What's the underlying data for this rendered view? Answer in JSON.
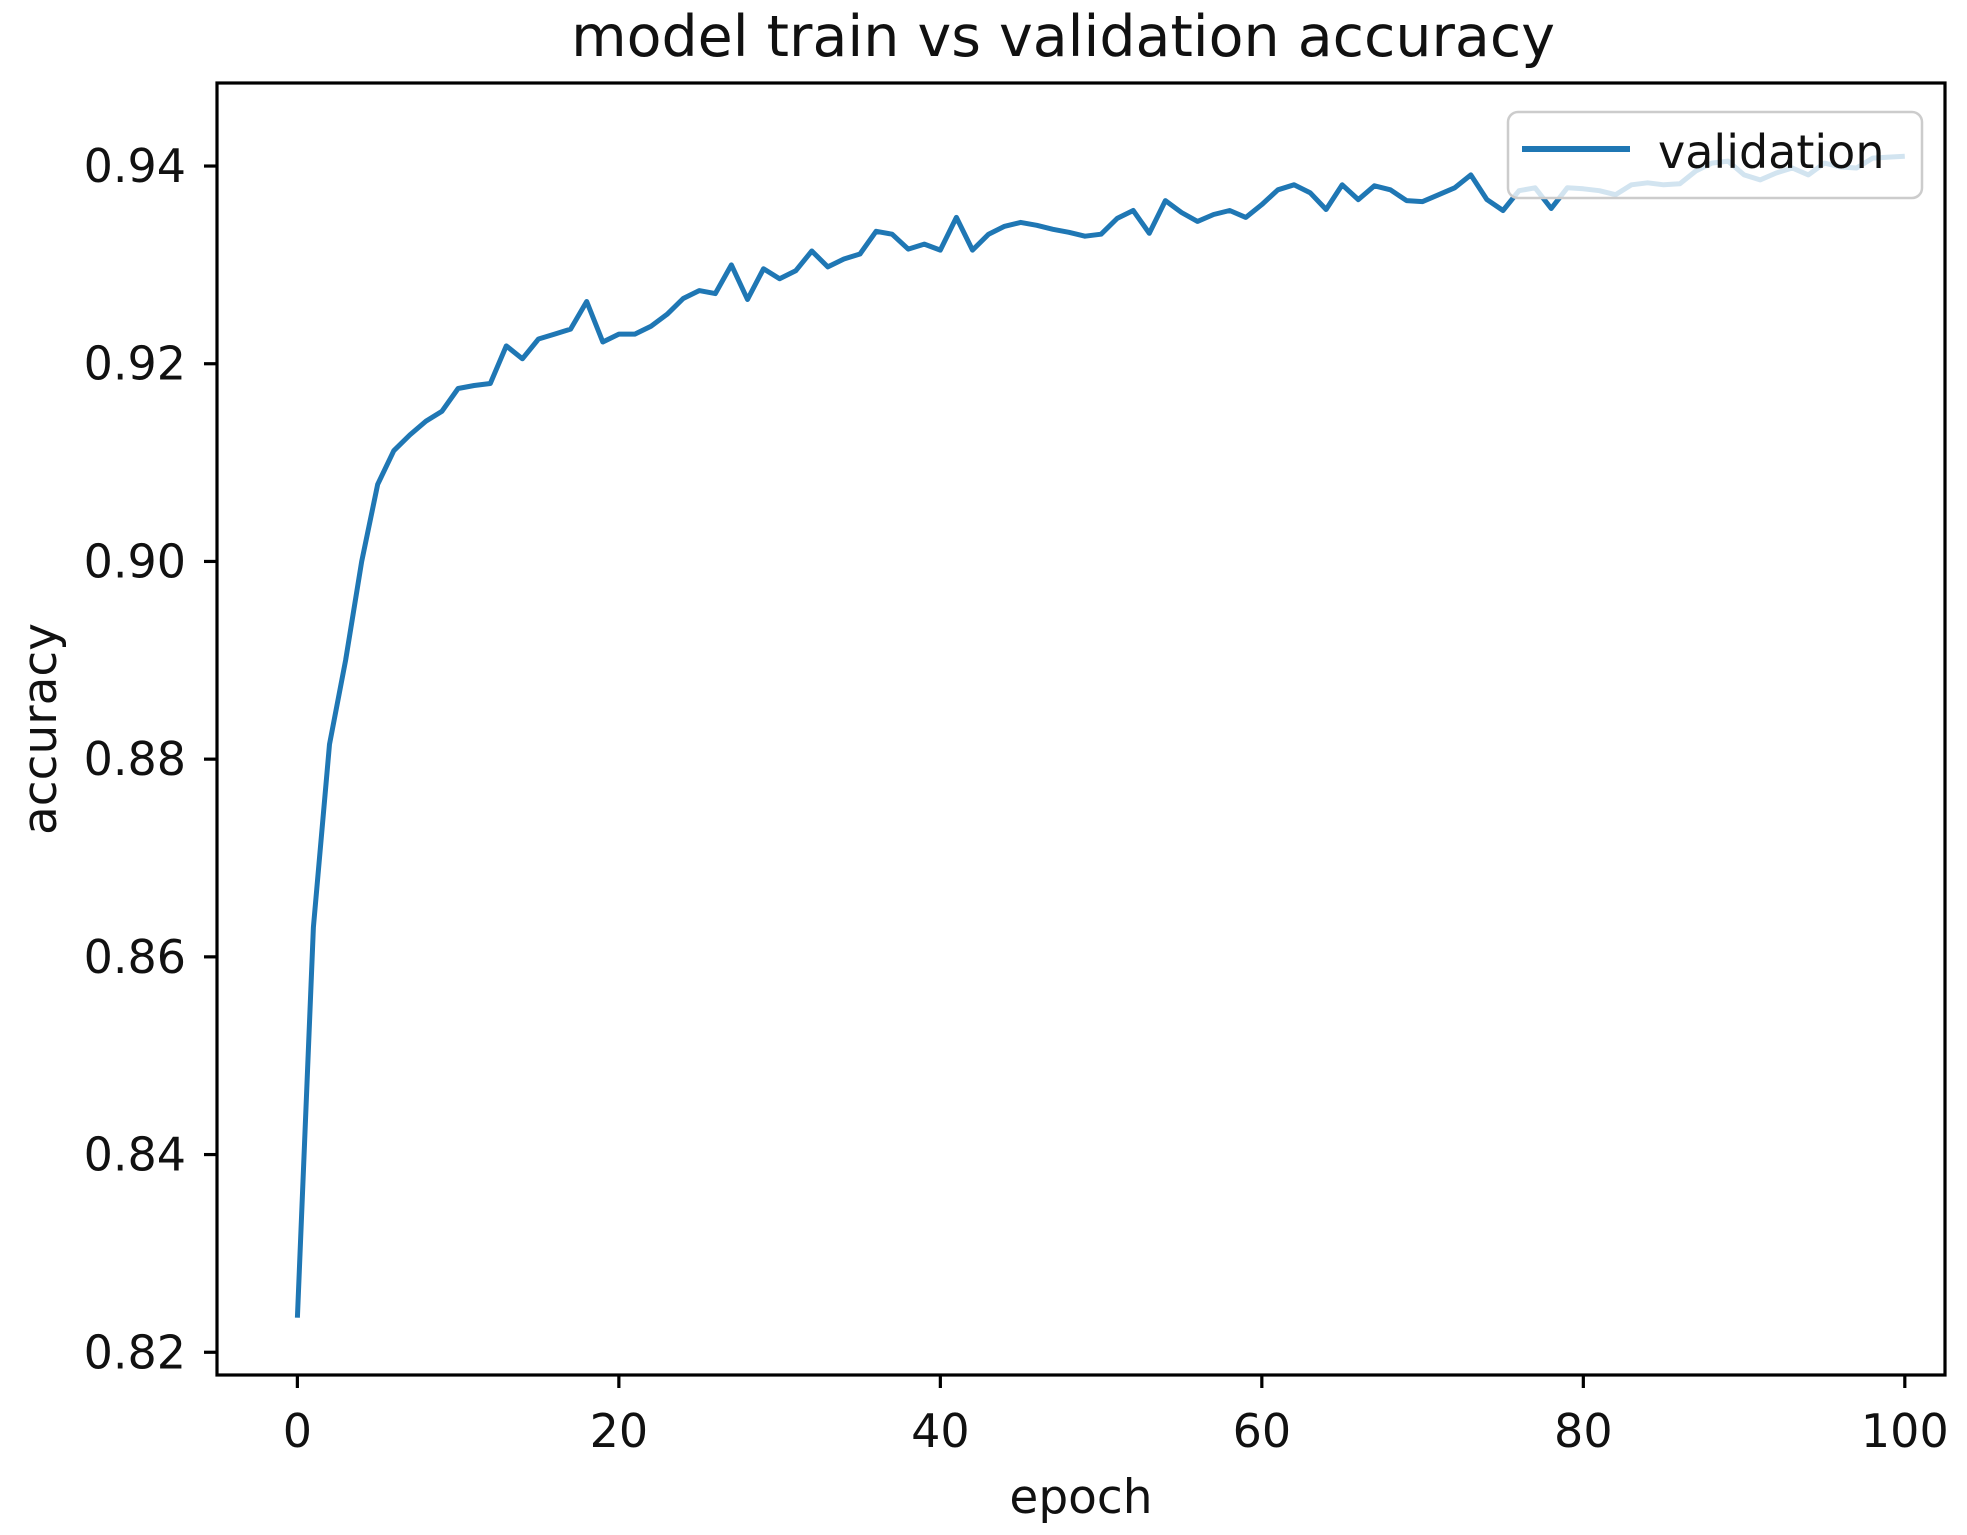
{
  "figure": {
    "background": "#ffffff"
  },
  "chart_data": {
    "type": "line",
    "title": "model train vs validation accuracy",
    "xlabel": "epoch",
    "ylabel": "accuracy",
    "xlim": [
      -5,
      102.5
    ],
    "ylim": [
      0.8177,
      0.9484
    ],
    "xticks": [
      0,
      20,
      40,
      60,
      80,
      100
    ],
    "yticks": [
      0.82,
      0.84,
      0.86,
      0.88,
      0.9,
      0.92,
      0.94
    ],
    "grid": false,
    "legend": {
      "label": "validation",
      "position": "upper-right",
      "face_color": "#ffffff",
      "face_alpha": 0.8,
      "border_color": "#cccccc"
    },
    "series": [
      {
        "name": "validation",
        "color": "#1f77b4",
        "line_width": 5,
        "x_start": 0,
        "x_step": 1,
        "values": [
          0.8235,
          0.863,
          0.8815,
          0.89,
          0.9,
          0.9078,
          0.9112,
          0.9128,
          0.9142,
          0.9152,
          0.9175,
          0.9178,
          0.918,
          0.9218,
          0.9205,
          0.9225,
          0.923,
          0.9235,
          0.9263,
          0.9222,
          0.923,
          0.923,
          0.9238,
          0.925,
          0.9266,
          0.9274,
          0.9271,
          0.93,
          0.9265,
          0.9296,
          0.9286,
          0.9294,
          0.9314,
          0.9298,
          0.9306,
          0.9311,
          0.9334,
          0.9331,
          0.9316,
          0.9321,
          0.9315,
          0.9348,
          0.9315,
          0.9331,
          0.9339,
          0.9343,
          0.934,
          0.9336,
          0.9333,
          0.9329,
          0.9331,
          0.9347,
          0.9355,
          0.9332,
          0.9365,
          0.9353,
          0.9344,
          0.9351,
          0.9355,
          0.9348,
          0.9361,
          0.9376,
          0.9381,
          0.9373,
          0.9356,
          0.9381,
          0.9366,
          0.938,
          0.9376,
          0.9365,
          0.9364,
          0.9371,
          0.9378,
          0.9391,
          0.9366,
          0.9355,
          0.9375,
          0.9378,
          0.9357,
          0.9378,
          0.9377,
          0.9375,
          0.9371,
          0.9381,
          0.9383,
          0.9381,
          0.9382,
          0.9395,
          0.9403,
          0.9405,
          0.9391,
          0.9386,
          0.9393,
          0.9398,
          0.9391,
          0.9403,
          0.9399,
          0.9398,
          0.9408,
          0.9409,
          0.941
        ]
      }
    ]
  }
}
